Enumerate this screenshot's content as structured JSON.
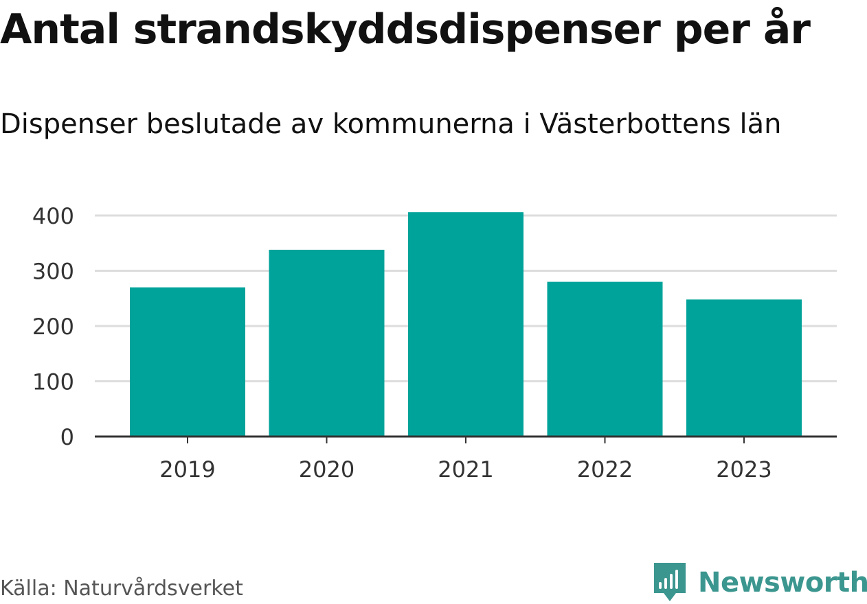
{
  "title": "Antal strandskyddsdispenser per år",
  "subtitle": "Dispenser beslutade av kommunerna i Västerbottens län",
  "source": "Källa: Naturvårdsverket",
  "brand": {
    "name": "Newsworthy",
    "icon": "newsworthy-logo-icon",
    "color": "#3b968f"
  },
  "colors": {
    "bar": "#00a39a",
    "gridline": "#dddddd",
    "axis": "#333333"
  },
  "chart_data": {
    "type": "bar",
    "title": "Antal strandskyddsdispenser per år",
    "subtitle": "Dispenser beslutade av kommunerna i Västerbottens län",
    "categories": [
      "2019",
      "2020",
      "2021",
      "2022",
      "2023"
    ],
    "values": [
      270,
      338,
      406,
      280,
      248
    ],
    "xlabel": "",
    "ylabel": "",
    "ylim": [
      0,
      400
    ],
    "yticks": [
      0,
      100,
      200,
      300,
      400
    ],
    "ytick_labels": [
      "0",
      "100",
      "200",
      "300",
      "400"
    ],
    "grid": true,
    "legend": "none"
  }
}
